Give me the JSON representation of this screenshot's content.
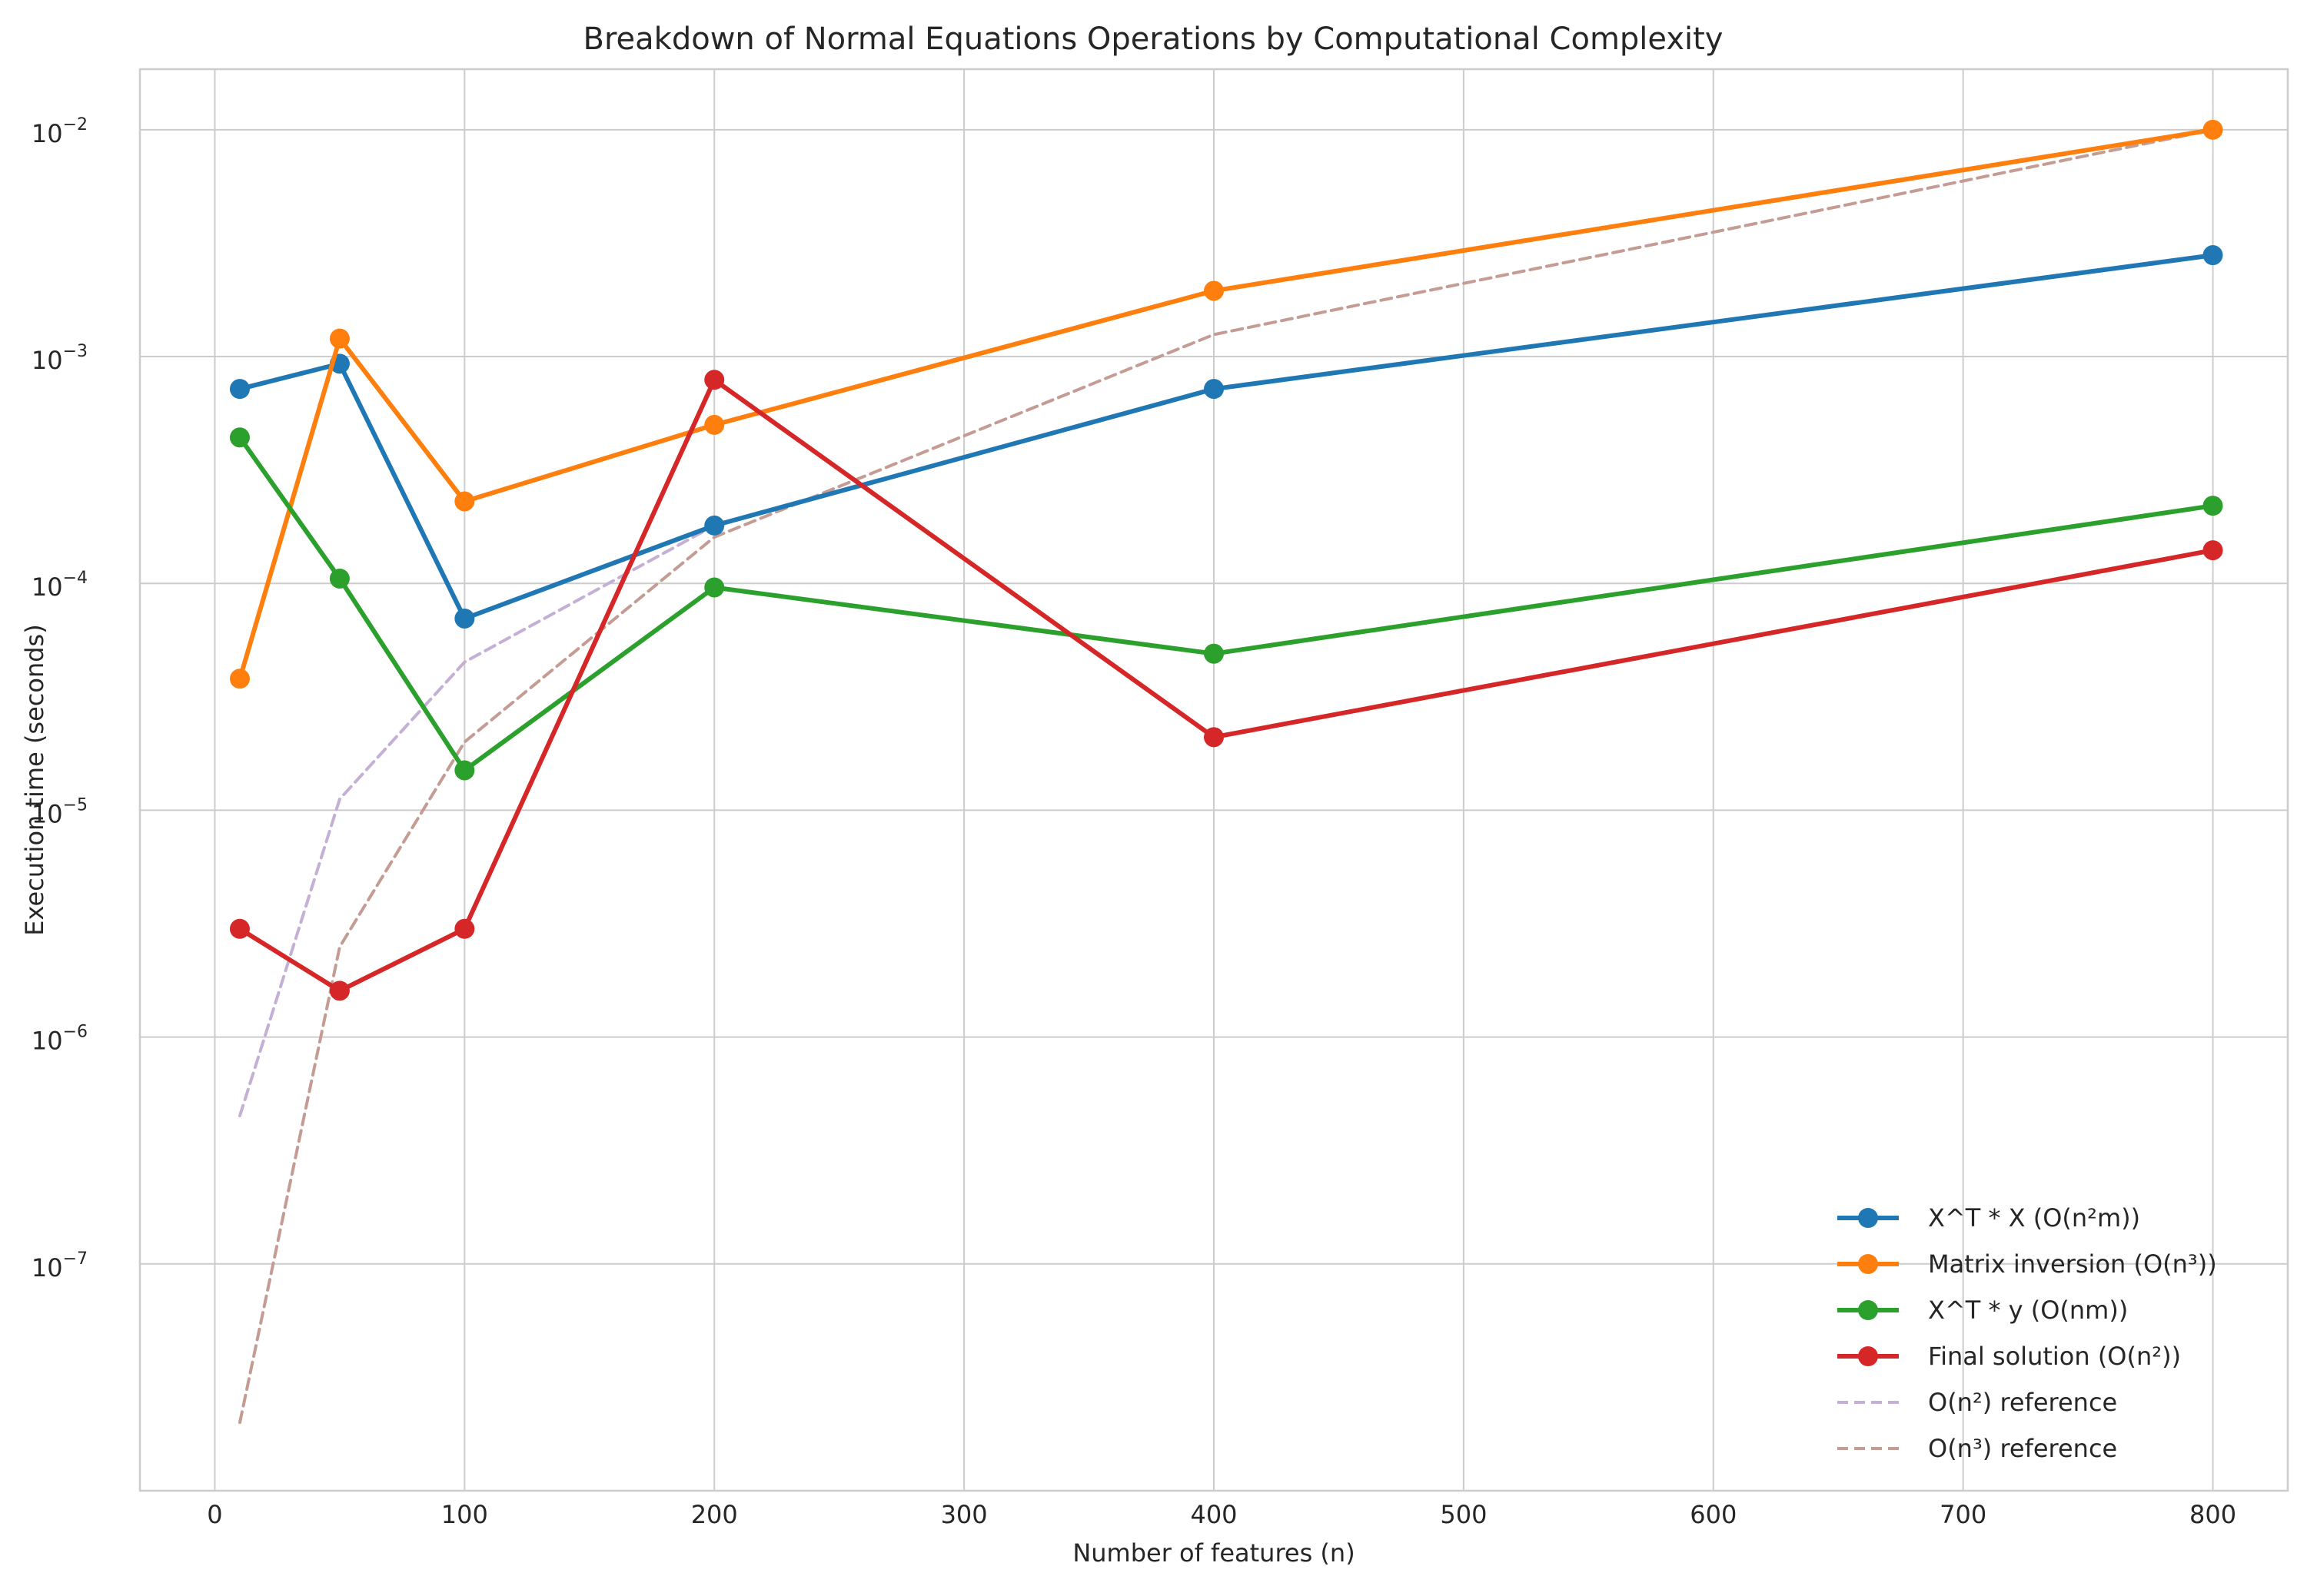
{
  "chart_data": {
    "type": "line",
    "title": "Breakdown of Normal Equations Operations by Computational Complexity",
    "xlabel": "Number of features (n)",
    "ylabel": "Execution time (seconds)",
    "x": [
      10,
      50,
      100,
      200,
      400,
      800
    ],
    "xlim": [
      -30,
      830
    ],
    "ylim": [
      1e-08,
      0.0185
    ],
    "yscale": "log",
    "x_ticks": [
      0,
      100,
      200,
      300,
      400,
      500,
      600,
      700,
      800
    ],
    "y_ticks": [
      {
        "value": 1e-07,
        "base": "10",
        "exp": "−7"
      },
      {
        "value": 1e-06,
        "base": "10",
        "exp": "−6"
      },
      {
        "value": 1e-05,
        "base": "10",
        "exp": "−5"
      },
      {
        "value": 0.0001,
        "base": "10",
        "exp": "−4"
      },
      {
        "value": 0.001,
        "base": "10",
        "exp": "−3"
      },
      {
        "value": 0.01,
        "base": "10",
        "exp": "−2"
      }
    ],
    "grid": true,
    "legend_position": "lower right",
    "series": [
      {
        "name": "X^T * X (O(n²m))",
        "color": "#1f77b4",
        "style": "solid-marker",
        "values": [
          0.00072,
          0.00093,
          7e-05,
          0.00018,
          0.00072,
          0.0028
        ]
      },
      {
        "name": "Matrix inversion (O(n³))",
        "color": "#ff7f0e",
        "style": "solid-marker",
        "values": [
          3.8e-05,
          0.0012,
          0.00023,
          0.0005,
          0.00195,
          0.01
        ]
      },
      {
        "name": "X^T * y (O(nm))",
        "color": "#2ca02c",
        "style": "solid-marker",
        "values": [
          0.00044,
          0.000105,
          1.5e-05,
          9.6e-05,
          4.9e-05,
          0.00022
        ]
      },
      {
        "name": "Final solution (O(n²))",
        "color": "#d62728",
        "style": "solid-marker",
        "values": [
          3e-06,
          1.6e-06,
          3e-06,
          0.00079,
          2.1e-05,
          0.00014
        ]
      },
      {
        "name": "O(n²) reference",
        "color": "#c5b0d5",
        "style": "dashed",
        "values": [
          4.5e-07,
          1.12e-05,
          4.5e-05,
          0.00018,
          0.00072,
          0.0028
        ]
      },
      {
        "name": "O(n³) reference",
        "color": "#c49c94",
        "style": "dashed",
        "values": [
          2e-08,
          2.5e-06,
          2e-05,
          0.00016,
          0.00125,
          0.01
        ]
      }
    ]
  }
}
